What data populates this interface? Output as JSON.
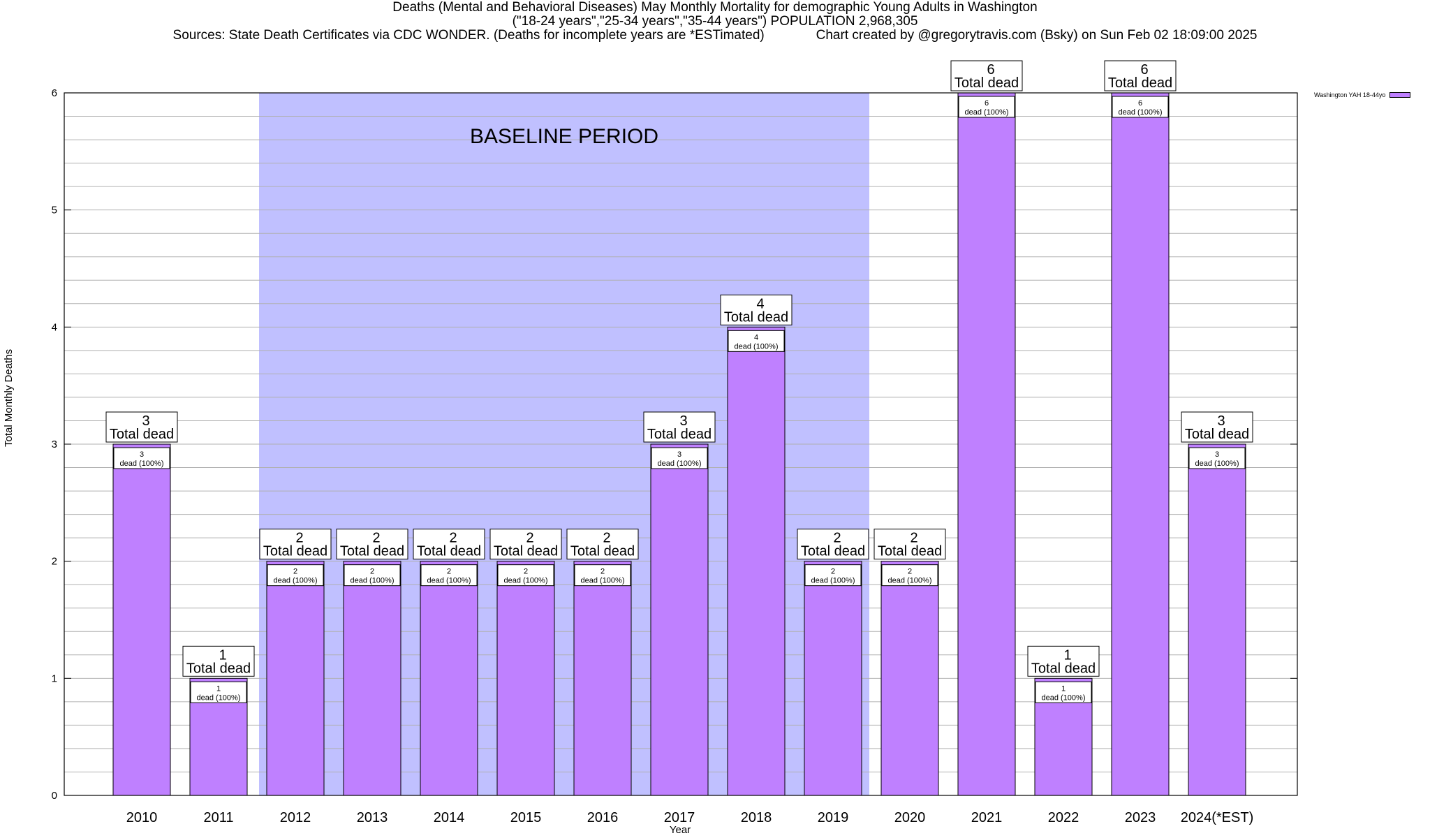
{
  "title": {
    "line1": "Deaths (Mental and Behavioral Diseases) May Monthly Mortality for demographic Young Adults in Washington",
    "line2": "(\"18-24 years\",\"25-34 years\",\"35-44 years\") POPULATION 2,968,305",
    "line3": "Sources: State Death Certificates via CDC WONDER. (Deaths for incomplete years are *ESTimated)              Chart created by @gregorytravis.com (Bsky) on Sun Feb 02 18:09:00 2025"
  },
  "chart_data": {
    "type": "bar",
    "xlabel": "Year",
    "ylabel": "Total Monthly Deaths",
    "ylim": [
      0,
      6
    ],
    "yticks": [
      "0",
      "1",
      "2",
      "3",
      "4",
      "5",
      "6"
    ],
    "grid": true,
    "legend_position": "top-right",
    "categories": [
      "2010",
      "2011",
      "2012",
      "2013",
      "2014",
      "2015",
      "2016",
      "2017",
      "2018",
      "2019",
      "2020",
      "2021",
      "2022",
      "2023",
      "2024(*EST)"
    ],
    "series": [
      {
        "name": "Washington YAH 18-44yo",
        "values": [
          3,
          1,
          2,
          2,
          2,
          2,
          2,
          3,
          4,
          2,
          2,
          6,
          1,
          6,
          3
        ]
      }
    ],
    "total_labels": [
      "3",
      "1",
      "2",
      "2",
      "2",
      "2",
      "2",
      "3",
      "4",
      "2",
      "2",
      "6",
      "1",
      "6",
      "3"
    ],
    "total_suffix": "Total dead",
    "inner_labels": [
      "3",
      "1",
      "2",
      "2",
      "2",
      "2",
      "2",
      "3",
      "4",
      "2",
      "2",
      "6",
      "1",
      "6",
      "3"
    ],
    "inner_suffix": "dead (100%)",
    "baseline": {
      "label": "BASELINE PERIOD",
      "from_category": "2012",
      "to_category": "2019"
    },
    "colors": {
      "bar": "#bf80ff",
      "baseline": "#c0c0ff",
      "grid": "#b0b0b0"
    }
  }
}
